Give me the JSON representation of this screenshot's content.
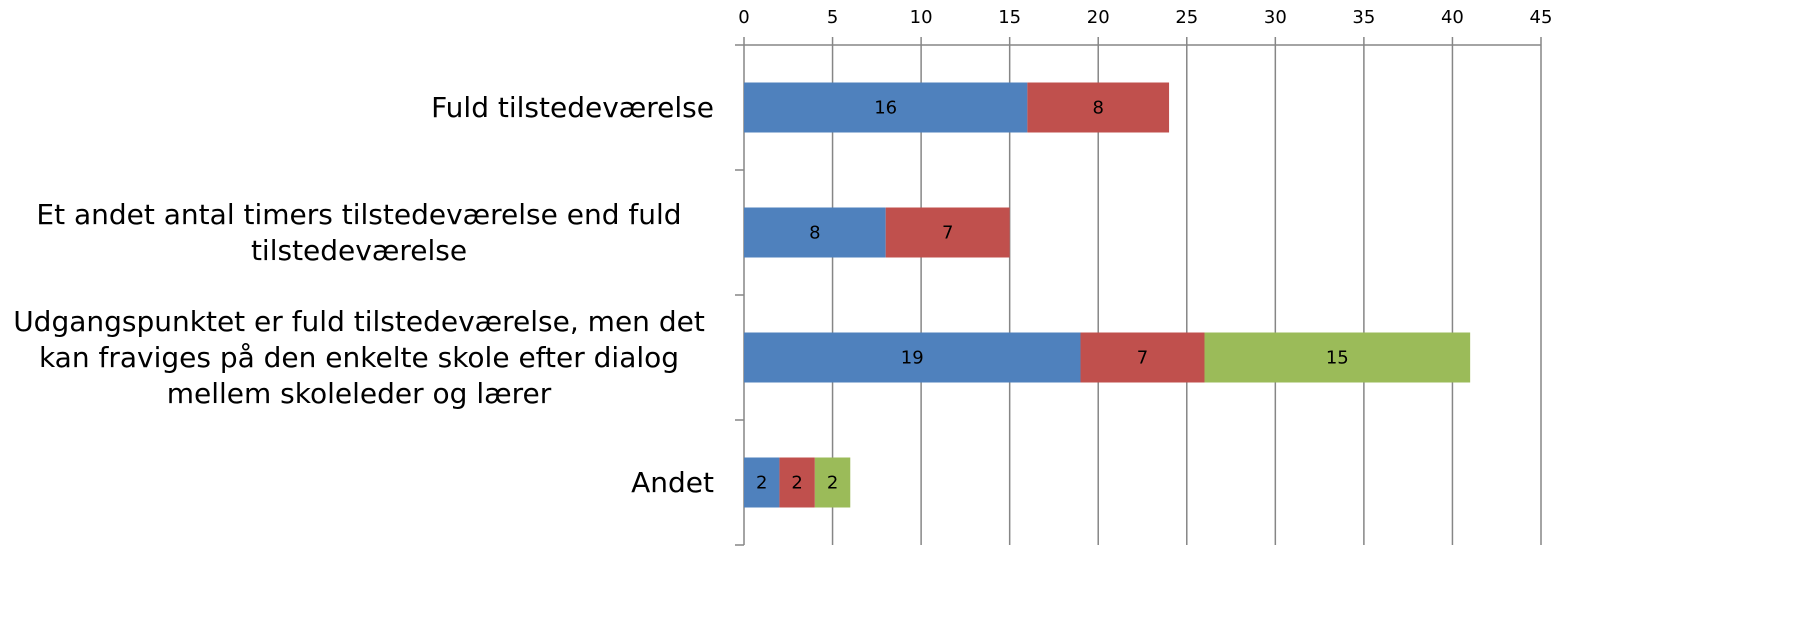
{
  "chart_data": {
    "type": "stacked_barh",
    "categories": [
      "Fuld tilstedeværelse",
      "Et andet antal timers tilstedeværelse end fuld tilstedeværelse",
      "Udgangspunktet er fuld tilstedeværelse, men det kan fraviges på den enkelte skole efter dialog mellem skoleleder og lærer",
      "Andet"
    ],
    "series": [
      {
        "color": "#4f81bd",
        "values": [
          16,
          8,
          19,
          2
        ]
      },
      {
        "color": "#c0504d",
        "values": [
          8,
          7,
          7,
          2
        ]
      },
      {
        "color": "#9bbb59",
        "values": [
          null,
          null,
          15,
          2
        ]
      }
    ],
    "xlim": [
      0,
      45
    ],
    "xticks": [
      0,
      5,
      10,
      15,
      20,
      25,
      30,
      35,
      40,
      45
    ],
    "grid": true
  }
}
